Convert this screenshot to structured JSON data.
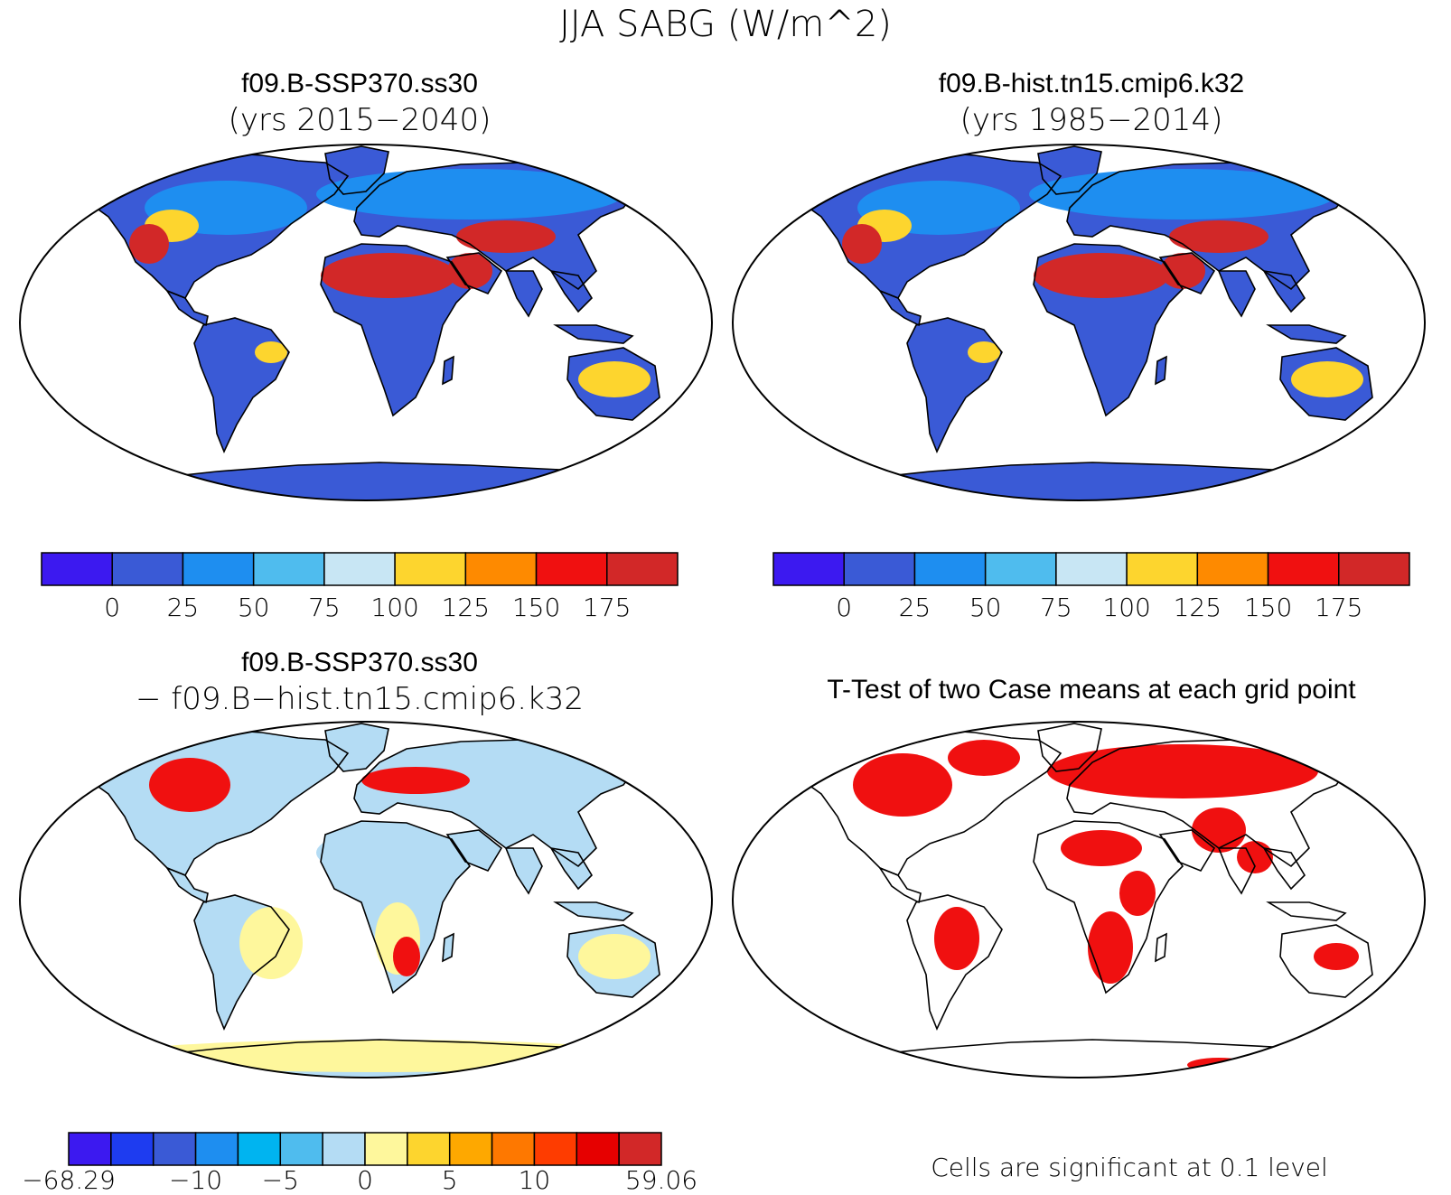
{
  "page": {
    "title": "JJA SABG (W/m^2)"
  },
  "panels": [
    {
      "id": "ssp370",
      "title": "f09.B-SSP370.ss30",
      "subtitle": "(yrs 2015−2040)",
      "kind": "mean"
    },
    {
      "id": "hist",
      "title": "f09.B-hist.tn15.cmip6.k32",
      "subtitle": "(yrs 1985−2014)",
      "kind": "mean"
    },
    {
      "id": "diff",
      "title": "f09.B-SSP370.ss30",
      "subtitle": "− f09.B−hist.tn15.cmip6.k32",
      "kind": "difference"
    },
    {
      "id": "ttest",
      "title": "T-Test of two Case means at each grid point",
      "subtitle": "",
      "kind": "significance"
    }
  ],
  "colorbars": {
    "mean": {
      "colors": [
        "#3c19f0",
        "#3a5ad6",
        "#1e8ef0",
        "#4fbcee",
        "#c8e6f4",
        "#fdd52e",
        "#fe8a00",
        "#f01010",
        "#d22828"
      ],
      "labels": [
        "0",
        "25",
        "50",
        "75",
        "100",
        "125",
        "150",
        "175"
      ]
    },
    "diff": {
      "colors": [
        "#3c19f0",
        "#1e3cf0",
        "#3a5ad6",
        "#1e8ef0",
        "#00b4f0",
        "#4fbcee",
        "#b4dcf4",
        "#fef79c",
        "#fdd52e",
        "#fea800",
        "#fe7800",
        "#fe3c00",
        "#e60000",
        "#d22828"
      ],
      "labels": [
        "−68.29",
        "−10",
        "−5",
        "0",
        "5",
        "10",
        "59.06"
      ]
    }
  },
  "significance_note": "Cells are significant at 0.1 level",
  "map_colors": {
    "land_fill": "#3a5ad6",
    "desert_fill": "#d22828",
    "midlat_fill": "#1e8ef0",
    "warm_fill": "#fdd52e",
    "diff_land_fill": "#b4dcf4",
    "diff_warm_fill": "#fef79c",
    "diff_hot_fill": "#f01010",
    "significant_fill": "#f01010"
  }
}
